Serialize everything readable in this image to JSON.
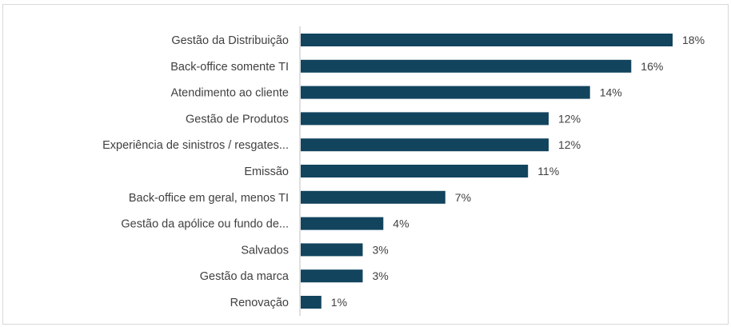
{
  "chart_data": {
    "type": "bar",
    "orientation": "horizontal",
    "title": "",
    "xlabel": "",
    "ylabel": "",
    "xlim": [
      0,
      18
    ],
    "grid": false,
    "legend": "none",
    "bar_color": "#12445e",
    "categories": [
      "Gestão da Distribuição",
      "Back-office somente TI",
      "Atendimento ao cliente",
      "Gestão de Produtos",
      "Experiência de sinistros / resgates...",
      "Emissão",
      "Back-office em geral, menos TI",
      "Gestão da apólice ou fundo de...",
      "Salvados",
      "Gestão da marca",
      "Renovação"
    ],
    "values": [
      18,
      16,
      14,
      12,
      12,
      11,
      7,
      4,
      3,
      3,
      1
    ],
    "value_labels": [
      "18%",
      "16%",
      "14%",
      "12%",
      "12%",
      "11%",
      "7%",
      "4%",
      "3%",
      "3%",
      "1%"
    ]
  }
}
